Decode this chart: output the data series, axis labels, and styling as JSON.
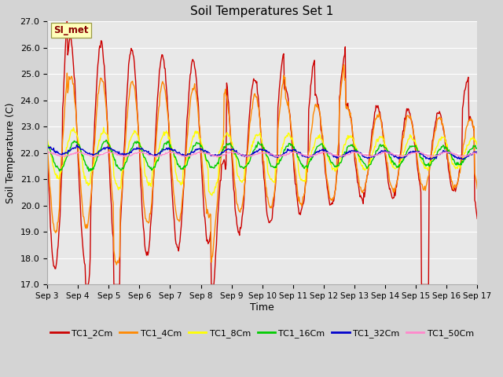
{
  "title": "Soil Temperatures Set 1",
  "xlabel": "Time",
  "ylabel": "Soil Temperature (C)",
  "annotation": "SI_met",
  "ylim": [
    17.0,
    27.0
  ],
  "yticks": [
    17.0,
    18.0,
    19.0,
    20.0,
    21.0,
    22.0,
    23.0,
    24.0,
    25.0,
    26.0,
    27.0
  ],
  "xtick_labels": [
    "Sep 3",
    "Sep 4",
    "Sep 5",
    "Sep 6",
    "Sep 7",
    "Sep 8",
    "Sep 9",
    "Sep 10",
    "Sep 11",
    "Sep 12",
    "Sep 13",
    "Sep 14",
    "Sep 15",
    "Sep 16",
    "Sep 17"
  ],
  "fig_bg_color": "#d4d4d4",
  "plot_bg_color": "#e8e8e8",
  "grid_color": "#ffffff",
  "series": [
    {
      "label": "TC1_2Cm",
      "color": "#cc0000",
      "lw": 1.0
    },
    {
      "label": "TC1_4Cm",
      "color": "#ff8800",
      "lw": 1.0
    },
    {
      "label": "TC1_8Cm",
      "color": "#ffff00",
      "lw": 1.0
    },
    {
      "label": "TC1_16Cm",
      "color": "#00cc00",
      "lw": 1.0
    },
    {
      "label": "TC1_32Cm",
      "color": "#0000cc",
      "lw": 1.0
    },
    {
      "label": "TC1_50Cm",
      "color": "#ff88cc",
      "lw": 1.0
    }
  ]
}
